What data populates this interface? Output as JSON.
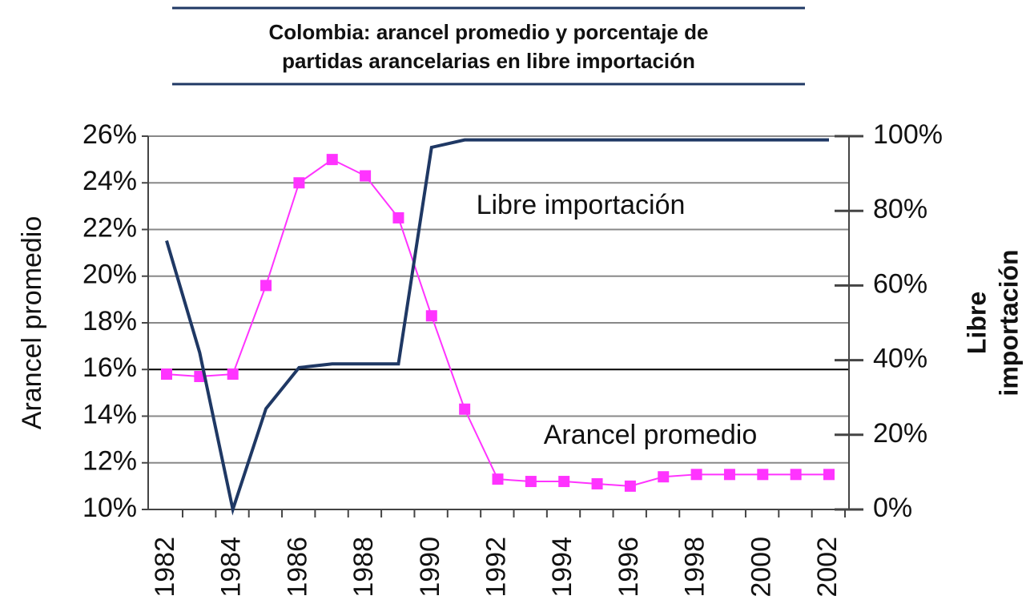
{
  "chart_data": {
    "type": "line",
    "title": [
      "Colombia: arancel promedio y porcentaje de",
      "partidas arancelarias en libre importación"
    ],
    "ylabel": "Arancel promedio",
    "y2label": [
      "Libre",
      "importación"
    ],
    "categories": [
      "1982",
      null,
      "1984",
      null,
      "1986",
      null,
      "1988",
      null,
      "1990",
      null,
      "1992",
      null,
      "1994",
      null,
      "1996",
      null,
      "1998",
      null,
      "2000",
      null,
      "2002"
    ],
    "series": [
      {
        "name": "Arancel promedio",
        "color": "#ff33ff",
        "values": [
          15.8,
          15.7,
          15.8,
          19.6,
          24.0,
          25.0,
          24.3,
          22.5,
          18.3,
          14.3,
          11.3,
          11.2,
          11.2,
          11.1,
          11.0,
          11.4,
          11.5,
          11.5,
          11.5,
          11.5,
          11.5
        ]
      },
      {
        "name": "Libre importación",
        "color": "#1f3864",
        "axis": "y2",
        "values": [
          72,
          42,
          0,
          27,
          38,
          39,
          39,
          39,
          97,
          99,
          99,
          99,
          99,
          99,
          99,
          99,
          99,
          99,
          99,
          99,
          99
        ]
      }
    ],
    "ylim": [
      10,
      26
    ],
    "yticks": [
      {
        "value": 10,
        "label": "10%"
      },
      {
        "value": 12,
        "label": "12%"
      },
      {
        "value": 14,
        "label": "14%"
      },
      {
        "value": 16,
        "label": "16%"
      },
      {
        "value": 18,
        "label": "18%"
      },
      {
        "value": 20,
        "label": "20%"
      },
      {
        "value": 22,
        "label": "22%"
      },
      {
        "value": 24,
        "label": "24%"
      },
      {
        "value": 26,
        "label": "26%"
      }
    ],
    "y2lim": [
      0,
      100
    ],
    "y2ticks": [
      {
        "value": 0,
        "label": "0%"
      },
      {
        "value": 20,
        "label": "20%"
      },
      {
        "value": 40,
        "label": "40%"
      },
      {
        "value": 60,
        "label": "60%"
      },
      {
        "value": 80,
        "label": "80%"
      },
      {
        "value": 100,
        "label": "100%"
      }
    ],
    "grid": true
  }
}
